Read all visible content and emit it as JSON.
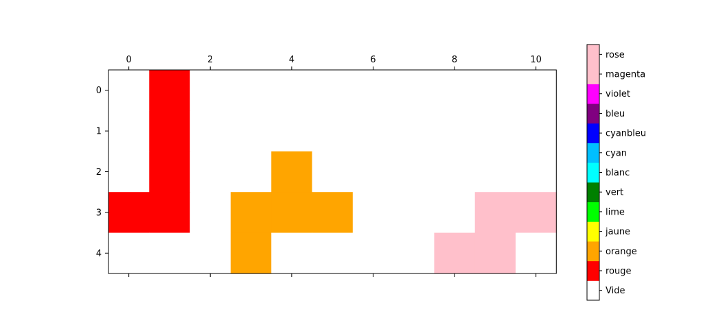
{
  "chart_data": {
    "type": "heatmap",
    "title": "",
    "xlabel": "",
    "ylabel": "",
    "x_ticks": [
      0,
      2,
      4,
      6,
      8,
      10
    ],
    "y_ticks": [
      0,
      1,
      2,
      3,
      4
    ],
    "x_tick_labels": [
      "0",
      "2",
      "4",
      "6",
      "8",
      "10"
    ],
    "y_tick_labels": [
      "0",
      "1",
      "2",
      "3",
      "4"
    ],
    "x_axis_position": "top",
    "grid": false,
    "colorbar": {
      "labels": [
        "Vide",
        "rouge",
        "orange",
        "jaune",
        "lime",
        "vert",
        "blanc",
        "cyan",
        "cyanbleu",
        "bleu",
        "violet",
        "magenta",
        "rose"
      ],
      "colors": [
        "#ffffff",
        "#ff0000",
        "#ffa500",
        "#ffff00",
        "#00ff00",
        "#008000",
        "#00ffff",
        "#00bfff",
        "#0000ff",
        "#800080",
        "#ff00ff",
        "#ffc0cb",
        "#ffc0cb"
      ]
    },
    "grid_values": [
      [
        0,
        1,
        0,
        0,
        0,
        0,
        0,
        0,
        0,
        0,
        0
      ],
      [
        0,
        1,
        0,
        0,
        0,
        0,
        0,
        0,
        0,
        0,
        0
      ],
      [
        0,
        1,
        0,
        0,
        2,
        0,
        0,
        0,
        0,
        0,
        0
      ],
      [
        1,
        1,
        0,
        2,
        2,
        2,
        0,
        0,
        0,
        12,
        12
      ],
      [
        0,
        0,
        0,
        2,
        0,
        0,
        0,
        0,
        12,
        12,
        0
      ]
    ]
  }
}
